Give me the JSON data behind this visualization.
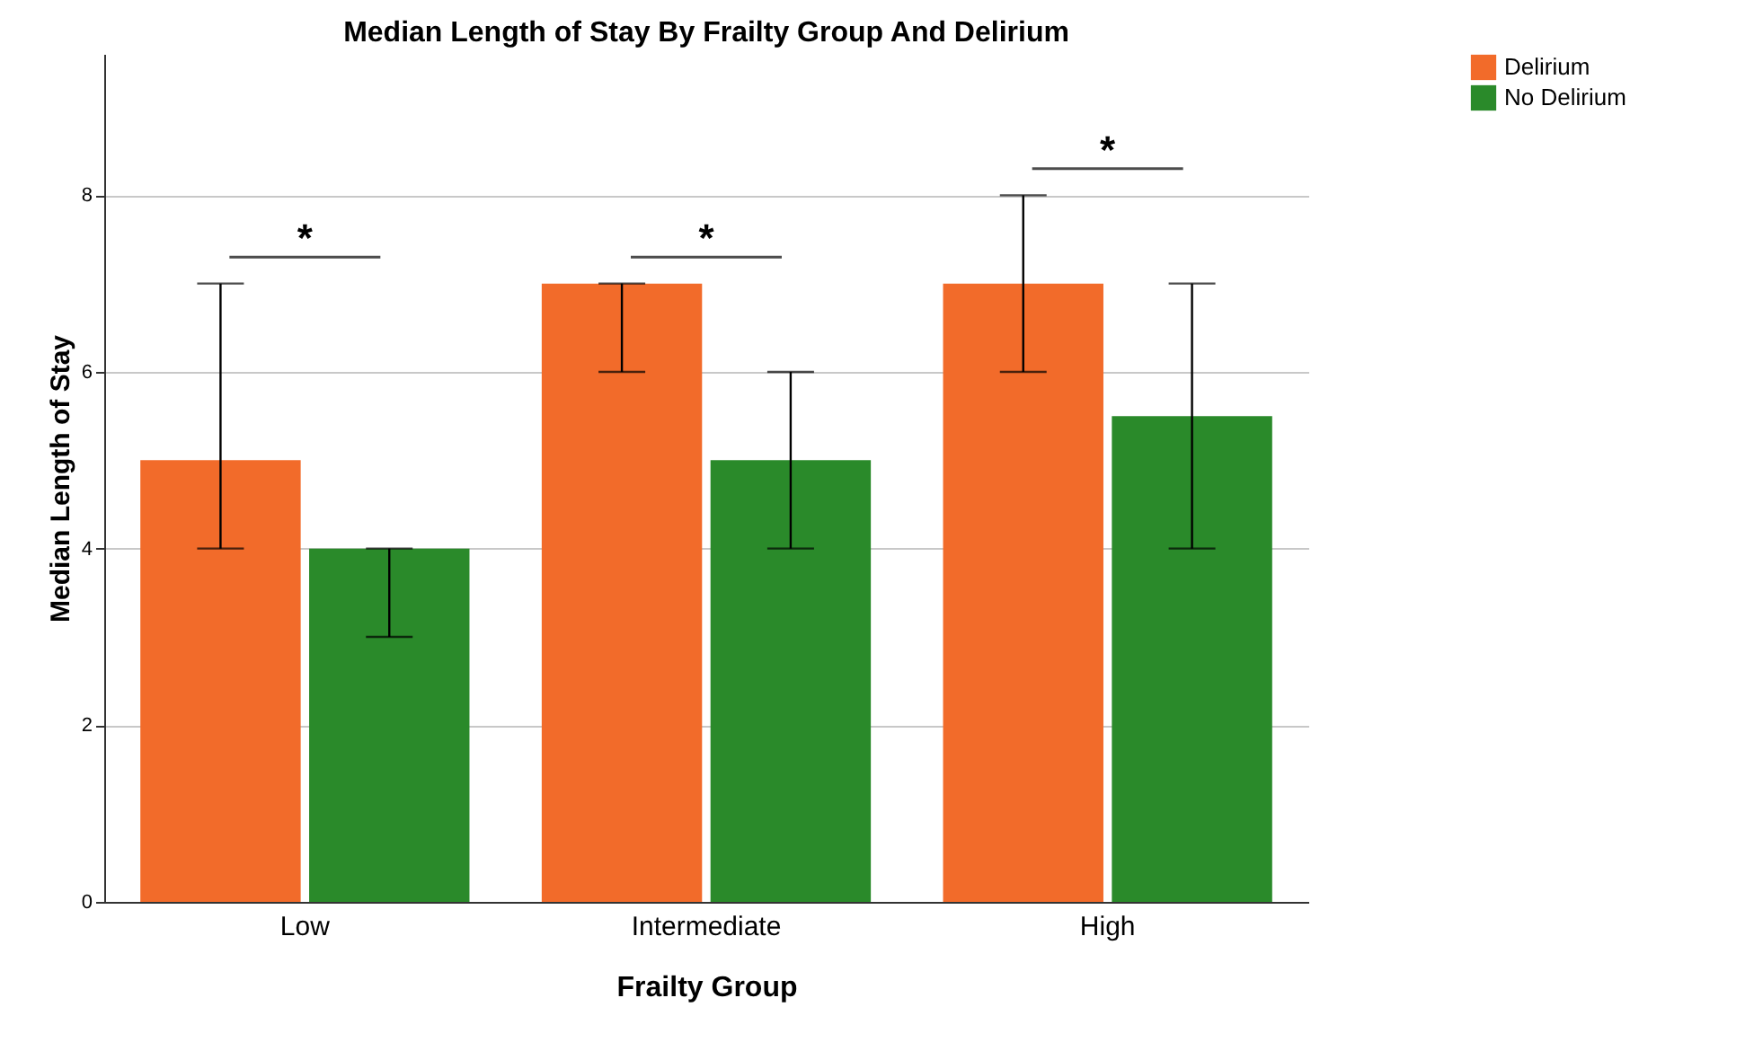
{
  "chart_data": {
    "type": "bar",
    "title": "Median Length of Stay By Frailty Group And Delirium",
    "xlabel": "Frailty Group",
    "ylabel": "Median Length of Stay",
    "categories": [
      "Low",
      "Intermediate",
      "High"
    ],
    "series": [
      {
        "name": "Delirium",
        "color": "#f26b2a",
        "values": [
          5,
          7,
          7
        ],
        "errors": [
          [
            4,
            7
          ],
          [
            6,
            7
          ],
          [
            6,
            8
          ]
        ]
      },
      {
        "name": "No Delirium",
        "color": "#2a8a2a",
        "values": [
          4,
          5,
          5.5
        ],
        "errors": [
          [
            3,
            4
          ],
          [
            4,
            6
          ],
          [
            4,
            7
          ]
        ]
      }
    ],
    "ylim": [
      0,
      9.6
    ],
    "yticks": [
      0,
      2,
      4,
      6,
      8
    ],
    "grid": "y",
    "legend": "top right",
    "annotations": [
      "*",
      "*",
      "*"
    ]
  }
}
